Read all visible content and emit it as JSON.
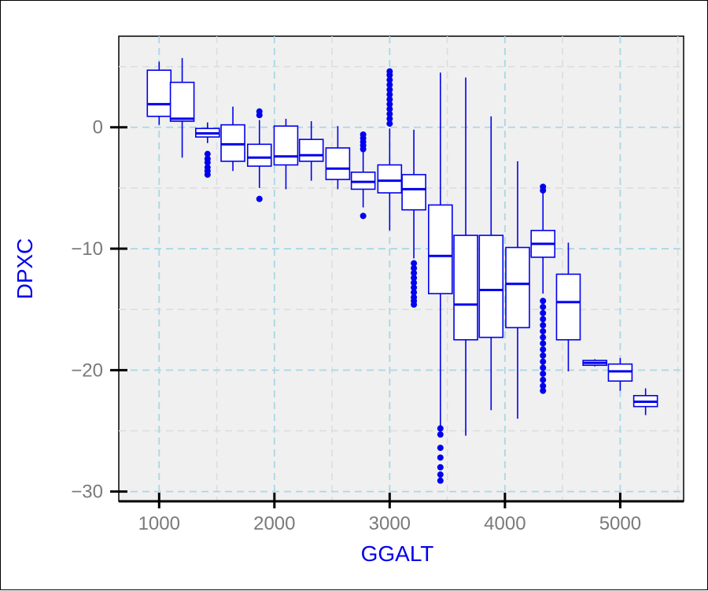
{
  "chart_data": {
    "type": "box",
    "xlabel": "GGALT",
    "ylabel": "DPXC",
    "xlim": [
      650,
      5550
    ],
    "ylim": [
      -30.8,
      7.5
    ],
    "x_ticks": [
      1000,
      2000,
      3000,
      4000,
      5000
    ],
    "x_tick_labels": [
      "1000",
      "2000",
      "3000",
      "4000",
      "5000"
    ],
    "y_ticks": [
      0,
      -10,
      -20,
      -30
    ],
    "y_tick_labels": [
      "0",
      "−10",
      "−20",
      "−30"
    ],
    "grid": true,
    "colors": {
      "box": "#0000ee",
      "panel": "#f0f0f0",
      "major_grid": "#a9d8e6",
      "minor_grid": "#dcdcdc",
      "label_color": "#7a7a7a",
      "title_color": "#0000ee"
    },
    "boxes": [
      {
        "x": 1000,
        "q1": 0.9,
        "median": 1.9,
        "q3": 4.7,
        "whisker_low": 0.2,
        "whisker_high": 5.4,
        "outliers": []
      },
      {
        "x": 1200,
        "q1": 0.5,
        "median": 0.7,
        "q3": 3.7,
        "whisker_low": -2.5,
        "whisker_high": 5.7,
        "outliers": []
      },
      {
        "x": 1420,
        "q1": -0.8,
        "median": -0.5,
        "q3": -0.1,
        "whisker_low": -1.3,
        "whisker_high": 0.4,
        "outliers": [
          -2.2,
          -2.6,
          -2.9,
          -3.3,
          -3.6,
          -3.9
        ]
      },
      {
        "x": 1640,
        "q1": -2.8,
        "median": -1.4,
        "q3": 0.2,
        "whisker_low": -3.6,
        "whisker_high": 1.7,
        "outliers": []
      },
      {
        "x": 1870,
        "q1": -3.2,
        "median": -2.5,
        "q3": -1.4,
        "whisker_low": -5.0,
        "whisker_high": 0.6,
        "outliers": [
          1.0,
          1.3,
          -5.9
        ]
      },
      {
        "x": 2100,
        "q1": -3.1,
        "median": -2.4,
        "q3": 0.1,
        "whisker_low": -5.1,
        "whisker_high": 0.7,
        "outliers": []
      },
      {
        "x": 2320,
        "q1": -2.8,
        "median": -2.3,
        "q3": -1.0,
        "whisker_low": -4.4,
        "whisker_high": 0.5,
        "outliers": []
      },
      {
        "x": 2550,
        "q1": -4.3,
        "median": -3.4,
        "q3": -1.7,
        "whisker_low": -5.1,
        "whisker_high": 0.1,
        "outliers": []
      },
      {
        "x": 2770,
        "q1": -5.1,
        "median": -4.5,
        "q3": -3.7,
        "whisker_low": -6.6,
        "whisker_high": -2.0,
        "outliers": [
          -0.6,
          -0.9,
          -1.2,
          -1.5,
          -1.8,
          -7.3
        ]
      },
      {
        "x": 3000,
        "q1": -5.4,
        "median": -4.4,
        "q3": -3.1,
        "whisker_low": -8.5,
        "whisker_high": -0.1,
        "outliers": [
          0.3,
          0.7,
          1.1,
          1.5,
          1.9,
          2.3,
          2.7,
          3.1,
          3.5,
          3.9,
          4.3,
          4.6
        ]
      },
      {
        "x": 3210,
        "q1": -6.8,
        "median": -5.1,
        "q3": -3.9,
        "whisker_low": -10.8,
        "whisker_high": -0.2,
        "outliers": [
          -11.2,
          -11.6,
          -12.0,
          -12.4,
          -12.8,
          -13.2,
          -13.6,
          -14.0,
          -14.3,
          -14.6
        ]
      },
      {
        "x": 3440,
        "q1": -13.7,
        "median": -10.6,
        "q3": -6.4,
        "whisker_low": -24.6,
        "whisker_high": 4.5,
        "outliers": [
          -24.8,
          -25.3,
          -26.4,
          -27.2,
          -28.0,
          -28.6,
          -29.1
        ]
      },
      {
        "x": 3660,
        "q1": -17.5,
        "median": -14.6,
        "q3": -8.9,
        "whisker_low": -25.4,
        "whisker_high": 4.1,
        "outliers": []
      },
      {
        "x": 3880,
        "q1": -17.3,
        "median": -13.4,
        "q3": -8.9,
        "whisker_low": -23.3,
        "whisker_high": 0.9,
        "outliers": []
      },
      {
        "x": 4110,
        "q1": -16.5,
        "median": -12.9,
        "q3": -9.9,
        "whisker_low": -24.0,
        "whisker_high": -2.8,
        "outliers": []
      },
      {
        "x": 4330,
        "q1": -10.7,
        "median": -9.6,
        "q3": -8.5,
        "whisker_low": -13.7,
        "whisker_high": -5.3,
        "outliers": [
          -4.9,
          -5.2,
          -14.3,
          -14.8,
          -15.3,
          -15.8,
          -16.3,
          -16.8,
          -17.3,
          -17.8,
          -18.3,
          -18.8,
          -19.3,
          -19.8,
          -20.3,
          -20.8,
          -21.3,
          -21.7
        ]
      },
      {
        "x": 4550,
        "q1": -17.5,
        "median": -14.4,
        "q3": -12.1,
        "whisker_low": -20.1,
        "whisker_high": -9.5,
        "outliers": []
      },
      {
        "x": 4780,
        "q1": -19.6,
        "median": -19.4,
        "q3": -19.2,
        "whisker_low": -19.7,
        "whisker_high": -19.1,
        "outliers": []
      },
      {
        "x": 5000,
        "q1": -20.9,
        "median": -20.1,
        "q3": -19.5,
        "whisker_low": -21.7,
        "whisker_high": -19.0,
        "outliers": []
      },
      {
        "x": 5220,
        "q1": -23.0,
        "median": -22.6,
        "q3": -22.1,
        "whisker_low": -23.7,
        "whisker_high": -21.5,
        "outliers": []
      }
    ]
  }
}
